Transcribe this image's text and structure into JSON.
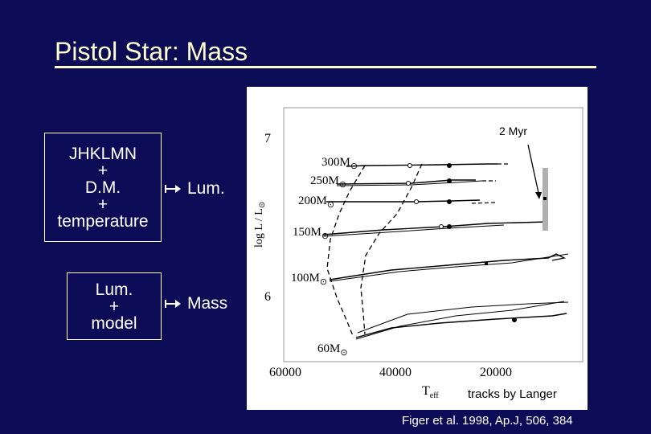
{
  "slide": {
    "title": "Pistol Star: Mass",
    "box1_lines": [
      "JHKLMN",
      "+",
      "D.M.",
      "+",
      "temperature"
    ],
    "box2_lines": [
      "Lum.",
      "+",
      "model"
    ],
    "arrow1_label": "Lum.",
    "arrow2_label": "Mass",
    "age_label": "2 Myr",
    "tracks_credit": "tracks by Langer",
    "citation": "Figer et al. 1998, Ap.J, 506, 384"
  },
  "plot": {
    "ylabel_main": "log L / L",
    "ylabel_sub": "⊙",
    "xlabel_main": "T",
    "xlabel_sub": "eff",
    "y_ticks": [
      "7",
      "6"
    ],
    "x_ticks": [
      "60000",
      "40000",
      "20000"
    ],
    "mass_labels": [
      {
        "main": "300M",
        "sub": "⊙"
      },
      {
        "main": "250M",
        "sub": "⊙"
      },
      {
        "main": "200M",
        "sub": "⊙"
      },
      {
        "main": "150M",
        "sub": "⊙"
      },
      {
        "main": "100M",
        "sub": "⊙"
      },
      {
        "main": "60M",
        "sub": "⊙"
      }
    ],
    "colors": {
      "background": "#ffffff",
      "ink": "#000000",
      "errorbar": "#b0b0b0"
    }
  }
}
